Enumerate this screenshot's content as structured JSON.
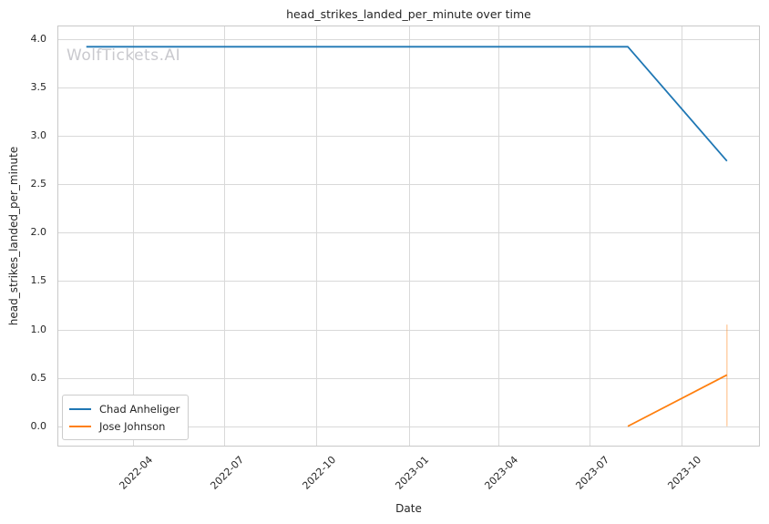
{
  "chart": {
    "title": "head_strikes_landed_per_minute over time",
    "xlabel": "Date",
    "ylabel": "head_strikes_landed_per_minute",
    "watermark": "WolfTickets.AI"
  },
  "chart_data": {
    "type": "line",
    "title": "head_strikes_landed_per_minute over time",
    "xlabel": "Date",
    "ylabel": "head_strikes_landed_per_minute",
    "grid": true,
    "legend_position": "lower left",
    "xlim": [
      "2022-01-16",
      "2023-12-17"
    ],
    "ylim": [
      -0.2,
      4.13
    ],
    "x_ticks": [
      {
        "date": "2022-04-01",
        "label": "2022-04"
      },
      {
        "date": "2022-07-01",
        "label": "2022-07"
      },
      {
        "date": "2022-10-01",
        "label": "2022-10"
      },
      {
        "date": "2023-01-01",
        "label": "2023-01"
      },
      {
        "date": "2023-04-01",
        "label": "2023-04"
      },
      {
        "date": "2023-07-01",
        "label": "2023-07"
      },
      {
        "date": "2023-10-01",
        "label": "2023-10"
      }
    ],
    "y_ticks": [
      {
        "value": 0.0,
        "label": "0.0"
      },
      {
        "value": 0.5,
        "label": "0.5"
      },
      {
        "value": 1.0,
        "label": "1.0"
      },
      {
        "value": 1.5,
        "label": "1.5"
      },
      {
        "value": 2.0,
        "label": "2.0"
      },
      {
        "value": 2.5,
        "label": "2.5"
      },
      {
        "value": 3.0,
        "label": "3.0"
      },
      {
        "value": 3.5,
        "label": "3.5"
      },
      {
        "value": 4.0,
        "label": "4.0"
      }
    ],
    "series": [
      {
        "name": "Chad Anheliger",
        "color": "#1f77b4",
        "x": [
          "2022-02-13",
          "2023-08-08",
          "2023-11-15"
        ],
        "y": [
          3.92,
          3.92,
          2.74
        ]
      },
      {
        "name": "Jose Johnson",
        "color": "#ff7f0e",
        "x": [
          "2023-08-08",
          "2023-11-15"
        ],
        "y": [
          0.0,
          0.53
        ],
        "error_bars": [
          {
            "x": "2023-11-15",
            "y_low": 0.0,
            "y_high": 1.05
          }
        ]
      }
    ]
  }
}
